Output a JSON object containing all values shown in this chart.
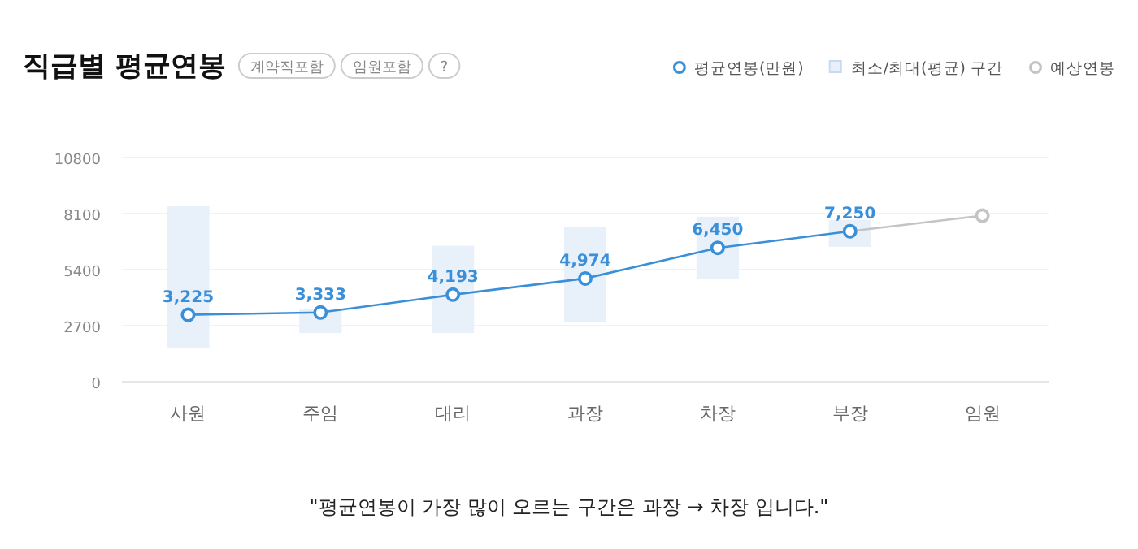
{
  "chart_data": {
    "type": "line",
    "title": "직급별 평균연봉",
    "annotations": [
      "계약직포함",
      "임원포함",
      "?",
      "\"평균연봉이 가장 많이 오르는 구간은 과장 → 차장 입니다.\""
    ],
    "categories": [
      "사원",
      "주임",
      "대리",
      "과장",
      "차장",
      "부장",
      "임원"
    ],
    "ylim": [
      0,
      10800
    ],
    "yticks": [
      0,
      2700,
      5400,
      8100,
      10800
    ],
    "grid": "y",
    "legend": "top right",
    "marker": "circle",
    "series": [
      {
        "name": "평균연봉(만원)",
        "color": "#3a8fd9",
        "values": [
          3225,
          3333,
          4193,
          4974,
          6450,
          7250,
          null
        ],
        "value_labels": [
          "3,225",
          "3,333",
          "4,193",
          "4,974",
          "6,450",
          "7,250",
          null
        ]
      },
      {
        "name": "최소/최대(평균) 구간",
        "type": "bar",
        "color": "#e8f0fa",
        "base": [
          1650,
          2350,
          2350,
          2850,
          4950,
          6500,
          null
        ],
        "values": [
          6800,
          1150,
          4200,
          4600,
          3000,
          1300,
          null
        ]
      },
      {
        "name": "예상연봉",
        "color": "#c4c4c4",
        "values": [
          null,
          null,
          null,
          null,
          null,
          7250,
          8000
        ]
      }
    ]
  }
}
